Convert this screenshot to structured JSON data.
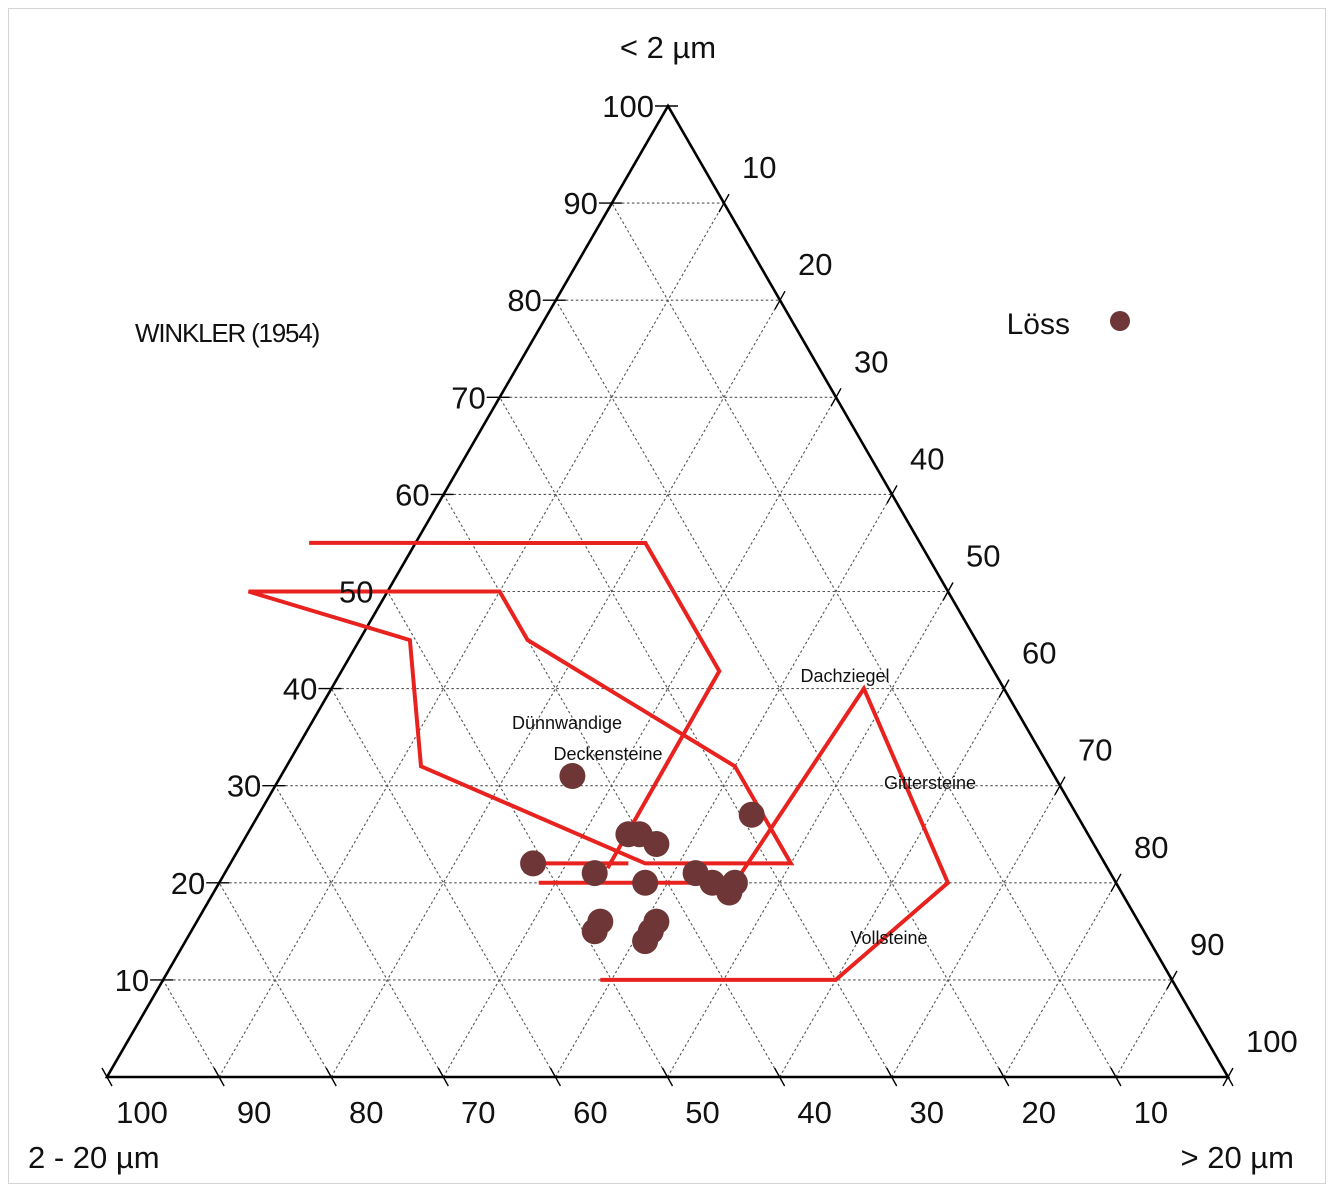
{
  "chart_data": {
    "type": "scatter",
    "subtype": "ternary",
    "colors": {
      "frame": "#000000",
      "grid": "#555555",
      "regions": "#e8231f",
      "points": "#6e3636"
    },
    "corner_labels": {
      "top": "< 2 µm",
      "left": "2 - 20 µm",
      "right": "> 20 µm"
    },
    "source_note": "WINKLER (1954)",
    "legend": {
      "label": "Löss",
      "placement": "top-right"
    },
    "grid": true,
    "ticks": [
      10,
      20,
      30,
      40,
      50,
      60,
      70,
      80,
      90,
      100
    ],
    "axis_labels": {
      "left_edge": [
        "10",
        "20",
        "30",
        "40",
        "50",
        "60",
        "70",
        "80",
        "90",
        "100"
      ],
      "right_edge": [
        "10",
        "20",
        "30",
        "40",
        "50",
        "60",
        "70",
        "80",
        "90",
        "100"
      ],
      "bottom_edge": [
        "100",
        "90",
        "80",
        "70",
        "60",
        "50",
        "40",
        "30",
        "20",
        "10"
      ]
    },
    "regions": [
      {
        "label": "Dünnwandige Deckensteine",
        "label_lines": [
          "Dünnwandige",
          "Deckensteine"
        ]
      },
      {
        "label": "Dachziegel",
        "label_lines": [
          "Dachziegel"
        ]
      },
      {
        "label": "Gittersteine",
        "label_lines": [
          "Gittersteine"
        ]
      },
      {
        "label": "Vollsteine",
        "label_lines": [
          "Vollsteine"
        ]
      }
    ],
    "series": [
      {
        "name": "Löss",
        "points": [
          {
            "clay": 31,
            "silt": 43
          },
          {
            "clay": 27,
            "silt": 29
          },
          {
            "clay": 25,
            "silt": 41
          },
          {
            "clay": 25,
            "silt": 40
          },
          {
            "clay": 24,
            "silt": 39
          },
          {
            "clay": 22,
            "silt": 51
          },
          {
            "clay": 21,
            "silt": 46
          },
          {
            "clay": 20,
            "silt": 42
          },
          {
            "clay": 21,
            "silt": 37
          },
          {
            "clay": 20,
            "silt": 36
          },
          {
            "clay": 20,
            "silt": 34
          },
          {
            "clay": 19,
            "silt": 35
          },
          {
            "clay": 16,
            "silt": 48
          },
          {
            "clay": 15,
            "silt": 49
          },
          {
            "clay": 16,
            "silt": 43
          },
          {
            "clay": 15,
            "silt": 44
          },
          {
            "clay": 14,
            "silt": 45
          }
        ]
      }
    ]
  }
}
